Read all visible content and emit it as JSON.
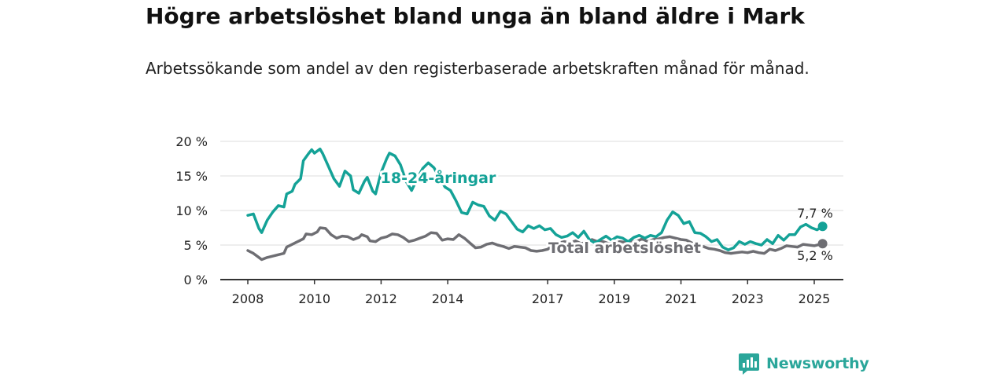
{
  "title": "Högre arbetslöshet bland unga än bland äldre i Mark",
  "subtitle": "Arbetssökande som andel av den registerbaserade arbetskraften månad för månad.",
  "brand": "Newsworthy",
  "colors": {
    "youth": "#14a297",
    "total": "#6e6e73",
    "axis": "#333333",
    "grid": "#dddddd",
    "brand": "#2aa69a"
  },
  "chart_data": {
    "type": "line",
    "x_range": [
      "2008-01",
      "2025-04"
    ],
    "ylim": [
      0,
      20
    ],
    "y_ticks": [
      0,
      5,
      10,
      15,
      20
    ],
    "y_tick_labels": [
      "0 %",
      "5 %",
      "10 %",
      "15 %",
      "20 %"
    ],
    "x_ticks": [
      "2008",
      "2010",
      "2012",
      "2014",
      "2017",
      "2019",
      "2021",
      "2023",
      "2025"
    ],
    "grid": "horizontal",
    "series": [
      {
        "name": "18-24-åringar",
        "end_label": "7,7 %",
        "points": [
          [
            "2008-01",
            9.3
          ],
          [
            "2008-03",
            9.5
          ],
          [
            "2008-05",
            7.4
          ],
          [
            "2008-06",
            6.8
          ],
          [
            "2008-08",
            8.6
          ],
          [
            "2008-10",
            9.8
          ],
          [
            "2008-12",
            10.7
          ],
          [
            "2009-02",
            10.5
          ],
          [
            "2009-03",
            12.4
          ],
          [
            "2009-05",
            12.8
          ],
          [
            "2009-06",
            13.8
          ],
          [
            "2009-08",
            14.6
          ],
          [
            "2009-09",
            17.2
          ],
          [
            "2009-11",
            18.3
          ],
          [
            "2009-12",
            18.8
          ],
          [
            "2010-01",
            18.3
          ],
          [
            "2010-03",
            18.9
          ],
          [
            "2010-04",
            18.2
          ],
          [
            "2010-06",
            16.4
          ],
          [
            "2010-08",
            14.6
          ],
          [
            "2010-10",
            13.5
          ],
          [
            "2010-12",
            15.7
          ],
          [
            "2011-02",
            15.0
          ],
          [
            "2011-03",
            13.0
          ],
          [
            "2011-05",
            12.5
          ],
          [
            "2011-07",
            14.2
          ],
          [
            "2011-08",
            14.8
          ],
          [
            "2011-10",
            12.8
          ],
          [
            "2011-11",
            12.4
          ],
          [
            "2012-01",
            15.5
          ],
          [
            "2012-03",
            17.5
          ],
          [
            "2012-04",
            18.3
          ],
          [
            "2012-06",
            17.9
          ],
          [
            "2012-08",
            16.6
          ],
          [
            "2012-10",
            14.2
          ],
          [
            "2012-12",
            12.9
          ],
          [
            "2013-02",
            14.6
          ],
          [
            "2013-04",
            16.1
          ],
          [
            "2013-06",
            16.9
          ],
          [
            "2013-08",
            16.2
          ],
          [
            "2013-10",
            14.8
          ],
          [
            "2013-12",
            13.4
          ],
          [
            "2014-02",
            12.9
          ],
          [
            "2014-04",
            11.4
          ],
          [
            "2014-06",
            9.7
          ],
          [
            "2014-08",
            9.5
          ],
          [
            "2014-10",
            11.2
          ],
          [
            "2014-12",
            10.8
          ],
          [
            "2015-02",
            10.6
          ],
          [
            "2015-04",
            9.2
          ],
          [
            "2015-06",
            8.6
          ],
          [
            "2015-08",
            9.9
          ],
          [
            "2015-10",
            9.5
          ],
          [
            "2015-12",
            8.4
          ],
          [
            "2016-02",
            7.3
          ],
          [
            "2016-04",
            6.9
          ],
          [
            "2016-06",
            7.8
          ],
          [
            "2016-08",
            7.4
          ],
          [
            "2016-10",
            7.8
          ],
          [
            "2016-12",
            7.2
          ],
          [
            "2017-02",
            7.4
          ],
          [
            "2017-04",
            6.5
          ],
          [
            "2017-06",
            6.1
          ],
          [
            "2017-08",
            6.3
          ],
          [
            "2017-10",
            6.8
          ],
          [
            "2017-12",
            6.1
          ],
          [
            "2018-02",
            7.0
          ],
          [
            "2018-04",
            5.8
          ],
          [
            "2018-06",
            5.3
          ],
          [
            "2018-08",
            5.8
          ],
          [
            "2018-10",
            6.3
          ],
          [
            "2018-12",
            5.7
          ],
          [
            "2019-02",
            6.2
          ],
          [
            "2019-04",
            6.0
          ],
          [
            "2019-06",
            5.5
          ],
          [
            "2019-08",
            6.1
          ],
          [
            "2019-10",
            6.4
          ],
          [
            "2019-12",
            6.0
          ],
          [
            "2020-02",
            6.4
          ],
          [
            "2020-04",
            6.2
          ],
          [
            "2020-06",
            6.8
          ],
          [
            "2020-08",
            8.6
          ],
          [
            "2020-10",
            9.8
          ],
          [
            "2020-12",
            9.3
          ],
          [
            "2021-02",
            8.1
          ],
          [
            "2021-04",
            8.4
          ],
          [
            "2021-06",
            6.8
          ],
          [
            "2021-08",
            6.7
          ],
          [
            "2021-10",
            6.2
          ],
          [
            "2021-12",
            5.5
          ],
          [
            "2022-02",
            5.8
          ],
          [
            "2022-04",
            4.7
          ],
          [
            "2022-06",
            4.3
          ],
          [
            "2022-08",
            4.6
          ],
          [
            "2022-10",
            5.5
          ],
          [
            "2022-12",
            5.1
          ],
          [
            "2023-02",
            5.5
          ],
          [
            "2023-04",
            5.2
          ],
          [
            "2023-06",
            5.0
          ],
          [
            "2023-08",
            5.8
          ],
          [
            "2023-10",
            5.2
          ],
          [
            "2023-12",
            6.4
          ],
          [
            "2024-02",
            5.7
          ],
          [
            "2024-04",
            6.5
          ],
          [
            "2024-06",
            6.5
          ],
          [
            "2024-08",
            7.6
          ],
          [
            "2024-10",
            8.0
          ],
          [
            "2024-12",
            7.5
          ],
          [
            "2025-02",
            7.2
          ],
          [
            "2025-04",
            7.7
          ]
        ]
      },
      {
        "name": "Total arbetslöshet",
        "end_label": "5,2 %",
        "points": [
          [
            "2008-01",
            4.2
          ],
          [
            "2008-03",
            3.8
          ],
          [
            "2008-05",
            3.2
          ],
          [
            "2008-06",
            2.9
          ],
          [
            "2008-08",
            3.2
          ],
          [
            "2008-10",
            3.4
          ],
          [
            "2008-12",
            3.6
          ],
          [
            "2009-02",
            3.8
          ],
          [
            "2009-03",
            4.7
          ],
          [
            "2009-05",
            5.1
          ],
          [
            "2009-07",
            5.5
          ],
          [
            "2009-09",
            5.9
          ],
          [
            "2009-10",
            6.6
          ],
          [
            "2009-12",
            6.5
          ],
          [
            "2010-02",
            6.9
          ],
          [
            "2010-03",
            7.5
          ],
          [
            "2010-05",
            7.4
          ],
          [
            "2010-07",
            6.5
          ],
          [
            "2010-09",
            6.0
          ],
          [
            "2010-11",
            6.3
          ],
          [
            "2011-01",
            6.2
          ],
          [
            "2011-03",
            5.8
          ],
          [
            "2011-05",
            6.1
          ],
          [
            "2011-06",
            6.5
          ],
          [
            "2011-08",
            6.2
          ],
          [
            "2011-09",
            5.6
          ],
          [
            "2011-11",
            5.5
          ],
          [
            "2012-01",
            6.0
          ],
          [
            "2012-03",
            6.2
          ],
          [
            "2012-05",
            6.6
          ],
          [
            "2012-07",
            6.5
          ],
          [
            "2012-09",
            6.1
          ],
          [
            "2012-11",
            5.5
          ],
          [
            "2013-01",
            5.7
          ],
          [
            "2013-03",
            6.0
          ],
          [
            "2013-05",
            6.3
          ],
          [
            "2013-07",
            6.8
          ],
          [
            "2013-09",
            6.7
          ],
          [
            "2013-11",
            5.7
          ],
          [
            "2014-01",
            5.9
          ],
          [
            "2014-03",
            5.8
          ],
          [
            "2014-05",
            6.5
          ],
          [
            "2014-07",
            6.0
          ],
          [
            "2014-09",
            5.3
          ],
          [
            "2014-11",
            4.6
          ],
          [
            "2015-01",
            4.7
          ],
          [
            "2015-03",
            5.1
          ],
          [
            "2015-05",
            5.3
          ],
          [
            "2015-07",
            5.0
          ],
          [
            "2015-09",
            4.8
          ],
          [
            "2015-11",
            4.5
          ],
          [
            "2016-01",
            4.8
          ],
          [
            "2016-03",
            4.7
          ],
          [
            "2016-05",
            4.6
          ],
          [
            "2016-07",
            4.2
          ],
          [
            "2016-09",
            4.1
          ],
          [
            "2016-11",
            4.2
          ],
          [
            "2017-01",
            4.4
          ],
          [
            "2017-03",
            5.0
          ],
          [
            "2017-05",
            5.3
          ],
          [
            "2017-07",
            5.5
          ],
          [
            "2017-09",
            5.3
          ],
          [
            "2017-11",
            5.6
          ],
          [
            "2018-01",
            5.2
          ],
          [
            "2018-03",
            5.4
          ],
          [
            "2018-05",
            5.8
          ],
          [
            "2018-07",
            5.5
          ],
          [
            "2018-09",
            5.5
          ],
          [
            "2018-11",
            5.2
          ],
          [
            "2019-01",
            5.3
          ],
          [
            "2019-03",
            5.5
          ],
          [
            "2019-05",
            5.4
          ],
          [
            "2019-07",
            5.6
          ],
          [
            "2019-09",
            5.5
          ],
          [
            "2019-11",
            5.9
          ],
          [
            "2020-01",
            5.5
          ],
          [
            "2020-03",
            5.8
          ],
          [
            "2020-05",
            5.9
          ],
          [
            "2020-07",
            6.1
          ],
          [
            "2020-09",
            6.2
          ],
          [
            "2020-11",
            6.0
          ],
          [
            "2021-01",
            5.8
          ],
          [
            "2021-03",
            5.7
          ],
          [
            "2021-05",
            5.3
          ],
          [
            "2021-07",
            5.0
          ],
          [
            "2021-09",
            4.8
          ],
          [
            "2021-11",
            4.5
          ],
          [
            "2022-01",
            4.4
          ],
          [
            "2022-03",
            4.2
          ],
          [
            "2022-05",
            3.9
          ],
          [
            "2022-07",
            3.8
          ],
          [
            "2022-09",
            3.9
          ],
          [
            "2022-11",
            4.0
          ],
          [
            "2023-01",
            3.9
          ],
          [
            "2023-03",
            4.1
          ],
          [
            "2023-05",
            3.9
          ],
          [
            "2023-07",
            3.8
          ],
          [
            "2023-09",
            4.4
          ],
          [
            "2023-11",
            4.2
          ],
          [
            "2024-01",
            4.5
          ],
          [
            "2024-03",
            4.9
          ],
          [
            "2024-05",
            4.8
          ],
          [
            "2024-07",
            4.7
          ],
          [
            "2024-09",
            5.1
          ],
          [
            "2024-11",
            5.0
          ],
          [
            "2025-01",
            4.9
          ],
          [
            "2025-04",
            5.2
          ]
        ]
      }
    ]
  }
}
